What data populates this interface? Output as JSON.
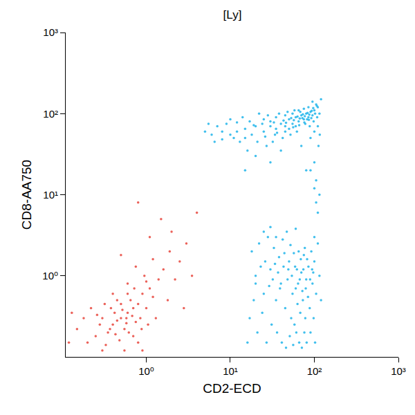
{
  "chart_data": {
    "type": "scatter",
    "title": "[Ly]",
    "x_label": "CD2-ECD",
    "y_label": "CD8-AA750",
    "log": true,
    "grid": false,
    "xlim": [
      0.11,
      1000
    ],
    "ylim": [
      0.1,
      1000
    ],
    "xticks": [
      {
        "value": 1,
        "label": "10⁰"
      },
      {
        "value": 10,
        "label": "10¹"
      },
      {
        "value": 100,
        "label": "10²"
      },
      {
        "value": 1000,
        "label": "10³"
      }
    ],
    "yticks": [
      {
        "value": 1,
        "label": "10⁰"
      },
      {
        "value": 10,
        "label": "10¹"
      },
      {
        "value": 100,
        "label": "10²"
      },
      {
        "value": 1000,
        "label": "10³"
      }
    ],
    "series": [
      {
        "color": "#e8453c",
        "marker": "dot",
        "values": [
          [
            0.5,
            0.3
          ],
          [
            0.4,
            0.25
          ],
          [
            0.6,
            0.35
          ],
          [
            0.7,
            0.4
          ],
          [
            0.35,
            0.2
          ],
          [
            0.45,
            0.28
          ],
          [
            0.55,
            0.22
          ],
          [
            0.3,
            0.3
          ],
          [
            0.65,
            0.5
          ],
          [
            0.8,
            0.45
          ],
          [
            0.25,
            0.18
          ],
          [
            0.42,
            0.35
          ],
          [
            0.58,
            0.3
          ],
          [
            0.75,
            0.27
          ],
          [
            0.9,
            0.6
          ],
          [
            1.1,
            0.7
          ],
          [
            0.5,
            0.45
          ],
          [
            0.38,
            0.4
          ],
          [
            0.28,
            0.25
          ],
          [
            0.62,
            0.2
          ],
          [
            0.48,
            0.16
          ],
          [
            0.33,
            0.14
          ],
          [
            0.7,
            0.18
          ],
          [
            0.85,
            0.3
          ],
          [
            1.0,
            0.4
          ],
          [
            1.2,
            0.55
          ],
          [
            1.4,
            0.9
          ],
          [
            1.6,
            1.2
          ],
          [
            0.95,
            1.0
          ],
          [
            0.6,
            0.8
          ],
          [
            0.4,
            0.6
          ],
          [
            0.22,
            0.4
          ],
          [
            0.18,
            0.3
          ],
          [
            0.15,
            0.22
          ],
          [
            0.2,
            0.15
          ],
          [
            0.3,
            0.12
          ],
          [
            0.55,
            0.12
          ],
          [
            0.8,
            0.15
          ],
          [
            1.3,
            0.3
          ],
          [
            1.8,
            0.5
          ],
          [
            2.2,
            0.9
          ],
          [
            2.5,
            1.5
          ],
          [
            1.9,
            2.0
          ],
          [
            1.2,
            1.6
          ],
          [
            0.75,
            1.3
          ],
          [
            3.0,
            2.5
          ],
          [
            2.0,
            3.5
          ],
          [
            1.5,
            5.0
          ],
          [
            0.6,
            0.6
          ],
          [
            0.45,
            0.5
          ],
          [
            0.52,
            0.38
          ],
          [
            0.68,
            0.32
          ],
          [
            0.37,
            0.22
          ],
          [
            0.43,
            0.19
          ],
          [
            0.58,
            0.26
          ],
          [
            0.88,
            0.22
          ],
          [
            1.05,
            0.25
          ],
          [
            0.26,
            0.33
          ],
          [
            0.32,
            0.45
          ],
          [
            0.72,
            0.7
          ],
          [
            1.0,
            0.85
          ],
          [
            0.13,
            0.35
          ],
          [
            0.12,
            0.15
          ],
          [
            4.0,
            6.0
          ],
          [
            0.8,
            8.0
          ],
          [
            3.5,
            1.0
          ],
          [
            2.8,
            0.4
          ],
          [
            0.5,
            1.8
          ],
          [
            1.1,
            3.0
          ],
          [
            0.9,
            0.12
          ]
        ]
      },
      {
        "color": "#1eb4ea",
        "marker": "dot",
        "values": [
          [
            20,
            70
          ],
          [
            30,
            80
          ],
          [
            40,
            75
          ],
          [
            50,
            85
          ],
          [
            60,
            90
          ],
          [
            70,
            95
          ],
          [
            80,
            100
          ],
          [
            90,
            105
          ],
          [
            15,
            65
          ],
          [
            12,
            60
          ],
          [
            10,
            55
          ],
          [
            8,
            60
          ],
          [
            6,
            55
          ],
          [
            7,
            70
          ],
          [
            9,
            75
          ],
          [
            11,
            50
          ],
          [
            13,
            45
          ],
          [
            18,
            55
          ],
          [
            25,
            60
          ],
          [
            35,
            65
          ],
          [
            45,
            70
          ],
          [
            55,
            75
          ],
          [
            65,
            80
          ],
          [
            75,
            85
          ],
          [
            85,
            90
          ],
          [
            95,
            95
          ],
          [
            100,
            110
          ],
          [
            110,
            120
          ],
          [
            105,
            130
          ],
          [
            95,
            140
          ],
          [
            85,
            120
          ],
          [
            75,
            115
          ],
          [
            65,
            110
          ],
          [
            55,
            100
          ],
          [
            45,
            95
          ],
          [
            35,
            90
          ],
          [
            25,
            85
          ],
          [
            17,
            80
          ],
          [
            14,
            90
          ],
          [
            22,
            100
          ],
          [
            28,
            95
          ],
          [
            38,
            100
          ],
          [
            48,
            105
          ],
          [
            58,
            110
          ],
          [
            68,
            105
          ],
          [
            78,
            75
          ],
          [
            88,
            70
          ],
          [
            98,
            80
          ],
          [
            108,
            90
          ],
          [
            115,
            100
          ],
          [
            120,
            150
          ],
          [
            62,
            60
          ],
          [
            52,
            55
          ],
          [
            42,
            50
          ],
          [
            32,
            45
          ],
          [
            27,
            40
          ],
          [
            16,
            35
          ],
          [
            20,
            30
          ],
          [
            40,
            35
          ],
          [
            70,
            40
          ],
          [
            90,
            50
          ],
          [
            100,
            60
          ],
          [
            60,
            70
          ],
          [
            50,
            65
          ],
          [
            30,
            70
          ],
          [
            24,
            75
          ],
          [
            19,
            72
          ],
          [
            33,
            78
          ],
          [
            43,
            82
          ],
          [
            53,
            88
          ],
          [
            63,
            92
          ],
          [
            73,
            98
          ],
          [
            83,
            102
          ],
          [
            93,
            108
          ],
          [
            12,
            78
          ],
          [
            10,
            85
          ],
          [
            8,
            48
          ],
          [
            5,
            60
          ],
          [
            5.5,
            75
          ],
          [
            6.5,
            45
          ],
          [
            110,
            70
          ],
          [
            116,
            55
          ],
          [
            112,
            40
          ],
          [
            100,
            25
          ],
          [
            105,
            15
          ],
          [
            80,
            20
          ],
          [
            30,
            25
          ],
          [
            15,
            20
          ],
          [
            45,
            60
          ],
          [
            56,
            68
          ],
          [
            66,
            72
          ],
          [
            76,
            78
          ],
          [
            86,
            84
          ],
          [
            36,
            58
          ],
          [
            26,
            52
          ],
          [
            46,
            77
          ],
          [
            57,
            83
          ],
          [
            67,
            87
          ],
          [
            77,
            93
          ],
          [
            87,
            97
          ],
          [
            97,
            117
          ],
          [
            107,
            125
          ],
          [
            102,
            100
          ],
          [
            92,
            88
          ],
          [
            82,
            85
          ],
          [
            72,
            88
          ],
          [
            15,
            50
          ],
          [
            21,
            45
          ],
          [
            34,
            55
          ],
          [
            20,
            1
          ],
          [
            30,
            1.2
          ],
          [
            40,
            0.8
          ],
          [
            50,
            1.5
          ],
          [
            60,
            0.7
          ],
          [
            70,
            1.1
          ],
          [
            80,
            0.9
          ],
          [
            25,
            0.6
          ],
          [
            35,
            0.5
          ],
          [
            45,
            0.4
          ],
          [
            55,
            0.6
          ],
          [
            65,
            2
          ],
          [
            75,
            1.8
          ],
          [
            85,
            1.3
          ],
          [
            95,
            0.8
          ],
          [
            100,
            1.5
          ],
          [
            110,
            2.5
          ],
          [
            18,
            2
          ],
          [
            22,
            2.5
          ],
          [
            28,
            3
          ],
          [
            33,
            2.2
          ],
          [
            38,
            1.7
          ],
          [
            43,
            1.3
          ],
          [
            48,
            0.9
          ],
          [
            53,
            0.3
          ],
          [
            58,
            0.25
          ],
          [
            63,
            0.45
          ],
          [
            68,
            0.35
          ],
          [
            73,
            0.5
          ],
          [
            78,
            0.3
          ],
          [
            88,
            0.4
          ],
          [
            98,
            0.3
          ],
          [
            105,
            0.6
          ],
          [
            115,
            1
          ],
          [
            120,
            0.5
          ],
          [
            17,
            0.3
          ],
          [
            16,
            0.15
          ],
          [
            19,
            0.5
          ],
          [
            21,
            0.2
          ],
          [
            24,
            0.35
          ],
          [
            27,
            0.15
          ],
          [
            31,
            0.25
          ],
          [
            36,
            0.2
          ],
          [
            41,
            0.15
          ],
          [
            46,
            0.13
          ],
          [
            51,
            0.18
          ],
          [
            56,
            0.14
          ],
          [
            61,
            0.2
          ],
          [
            66,
            0.15
          ],
          [
            71,
            0.13
          ],
          [
            76,
            0.2
          ],
          [
            81,
            0.15
          ],
          [
            90,
            0.2
          ],
          [
            102,
            0.15
          ],
          [
            26,
            1.5
          ],
          [
            32,
            0.9
          ],
          [
            37,
            1.1
          ],
          [
            42,
            2.8
          ],
          [
            47,
            3.5
          ],
          [
            52,
            2.4
          ],
          [
            57,
            1.9
          ],
          [
            62,
            1.2
          ],
          [
            67,
            0.9
          ],
          [
            72,
            0.65
          ],
          [
            77,
            2.2
          ],
          [
            82,
            1.6
          ],
          [
            92,
            2
          ],
          [
            97,
            1.1
          ],
          [
            23,
            1.3
          ],
          [
            29,
            0.75
          ],
          [
            34,
            1.4
          ],
          [
            39,
            0.7
          ],
          [
            44,
            1.9
          ],
          [
            49,
            1.2
          ],
          [
            54,
            1
          ],
          [
            59,
            1.3
          ],
          [
            64,
            0.8
          ],
          [
            69,
            1.6
          ],
          [
            74,
            1.2
          ],
          [
            79,
            0.7
          ],
          [
            84,
            0.55
          ],
          [
            89,
            0.9
          ],
          [
            94,
            1.2
          ],
          [
            20,
            0.8
          ],
          [
            25,
            3.5
          ],
          [
            30,
            4
          ],
          [
            35,
            3
          ],
          [
            60,
            3.8
          ],
          [
            100,
            3
          ],
          [
            110,
            6
          ],
          [
            115,
            10
          ],
          [
            100,
            12
          ],
          [
            90,
            20
          ],
          [
            105,
            8
          ]
        ]
      }
    ]
  }
}
